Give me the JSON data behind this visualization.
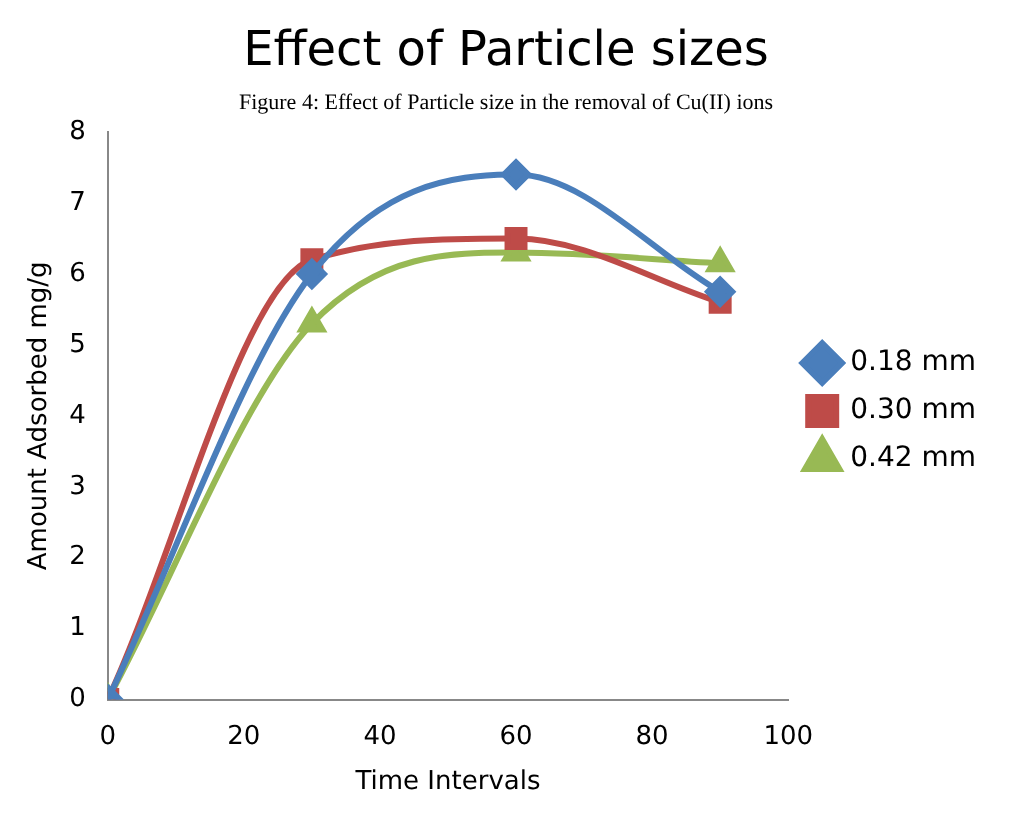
{
  "chart_data": {
    "type": "line",
    "title": "Effect of Particle sizes",
    "annotations": [
      "Figure 4: Effect of Particle size in the removal of Cu(II) ions"
    ],
    "xlabel": "Time Intervals",
    "ylabel": "Amount Adsorbed mg/g",
    "x": [
      0,
      30,
      60,
      90
    ],
    "xlim": [
      0,
      100
    ],
    "xticks": [
      0,
      20,
      40,
      60,
      80,
      100
    ],
    "ylim": [
      0,
      8
    ],
    "yticks": [
      0,
      1,
      2,
      3,
      4,
      5,
      6,
      7,
      8
    ],
    "grid": false,
    "legend": "right",
    "series": [
      {
        "name": "0.18 mm",
        "color": "#4a7ebb",
        "marker": "diamond",
        "values": [
          0,
          6.0,
          7.4,
          5.75
        ]
      },
      {
        "name": "0.30 mm",
        "color": "#be4b48",
        "marker": "square",
        "values": [
          0,
          6.2,
          6.5,
          5.6
        ]
      },
      {
        "name": "0.42 mm",
        "color": "#98b954",
        "marker": "triangle",
        "values": [
          0,
          5.3,
          6.3,
          6.15
        ]
      }
    ]
  }
}
